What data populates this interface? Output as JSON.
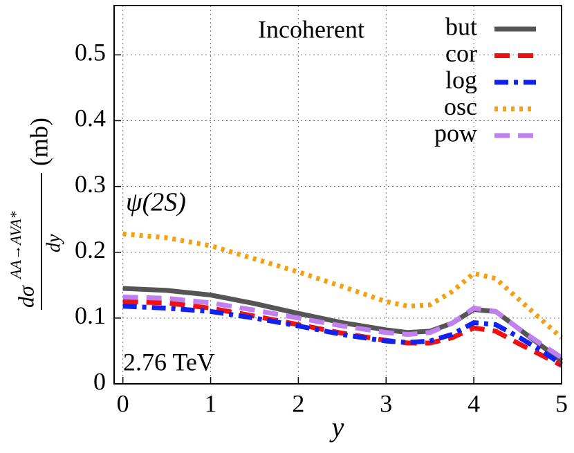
{
  "chart_data": {
    "type": "line",
    "annotations": [
      "Incoherent",
      "ψ(2S)",
      "2.76 TeV"
    ],
    "xlabel": "y",
    "ylabel": {
      "numerator": "dσ",
      "superscript": "AA→AVA*",
      "denominator": "dy",
      "unit": "(mb)"
    },
    "x": [
      0,
      0.5,
      1,
      1.5,
      2,
      2.5,
      3,
      3.25,
      3.5,
      3.75,
      4,
      4.25,
      4.5,
      4.75,
      5
    ],
    "series": [
      {
        "name": "but",
        "color": "#555555",
        "dash": "solid",
        "values": [
          0.145,
          0.142,
          0.135,
          0.122,
          0.107,
          0.093,
          0.082,
          0.078,
          0.08,
          0.092,
          0.113,
          0.11,
          0.085,
          0.06,
          0.035
        ]
      },
      {
        "name": "cor",
        "color": "#ee1111",
        "dash": "dashed",
        "values": [
          0.125,
          0.123,
          0.115,
          0.103,
          0.09,
          0.077,
          0.066,
          0.062,
          0.062,
          0.07,
          0.085,
          0.08,
          0.062,
          0.045,
          0.028
        ]
      },
      {
        "name": "log",
        "color": "#1122ee",
        "dash": "dashdot",
        "values": [
          0.118,
          0.115,
          0.11,
          0.1,
          0.088,
          0.075,
          0.065,
          0.063,
          0.065,
          0.075,
          0.093,
          0.09,
          0.072,
          0.052,
          0.03
        ]
      },
      {
        "name": "osc",
        "color": "#f5a010",
        "dash": "dotted",
        "values": [
          0.228,
          0.222,
          0.21,
          0.19,
          0.17,
          0.148,
          0.125,
          0.118,
          0.12,
          0.14,
          0.168,
          0.16,
          0.13,
          0.1,
          0.07
        ]
      },
      {
        "name": "pow",
        "color": "#c080f0",
        "dash": "dashed",
        "values": [
          0.132,
          0.13,
          0.123,
          0.112,
          0.1,
          0.088,
          0.078,
          0.075,
          0.078,
          0.092,
          0.115,
          0.11,
          0.085,
          0.062,
          0.04
        ]
      }
    ],
    "xlim": [
      -0.1,
      5
    ],
    "ylim": [
      0,
      0.575
    ],
    "xticks": [
      0,
      1,
      2,
      3,
      4,
      5
    ],
    "yticks": [
      0,
      0.1,
      0.2,
      0.3,
      0.4,
      0.5
    ],
    "grid": true,
    "legend": "upper right"
  }
}
